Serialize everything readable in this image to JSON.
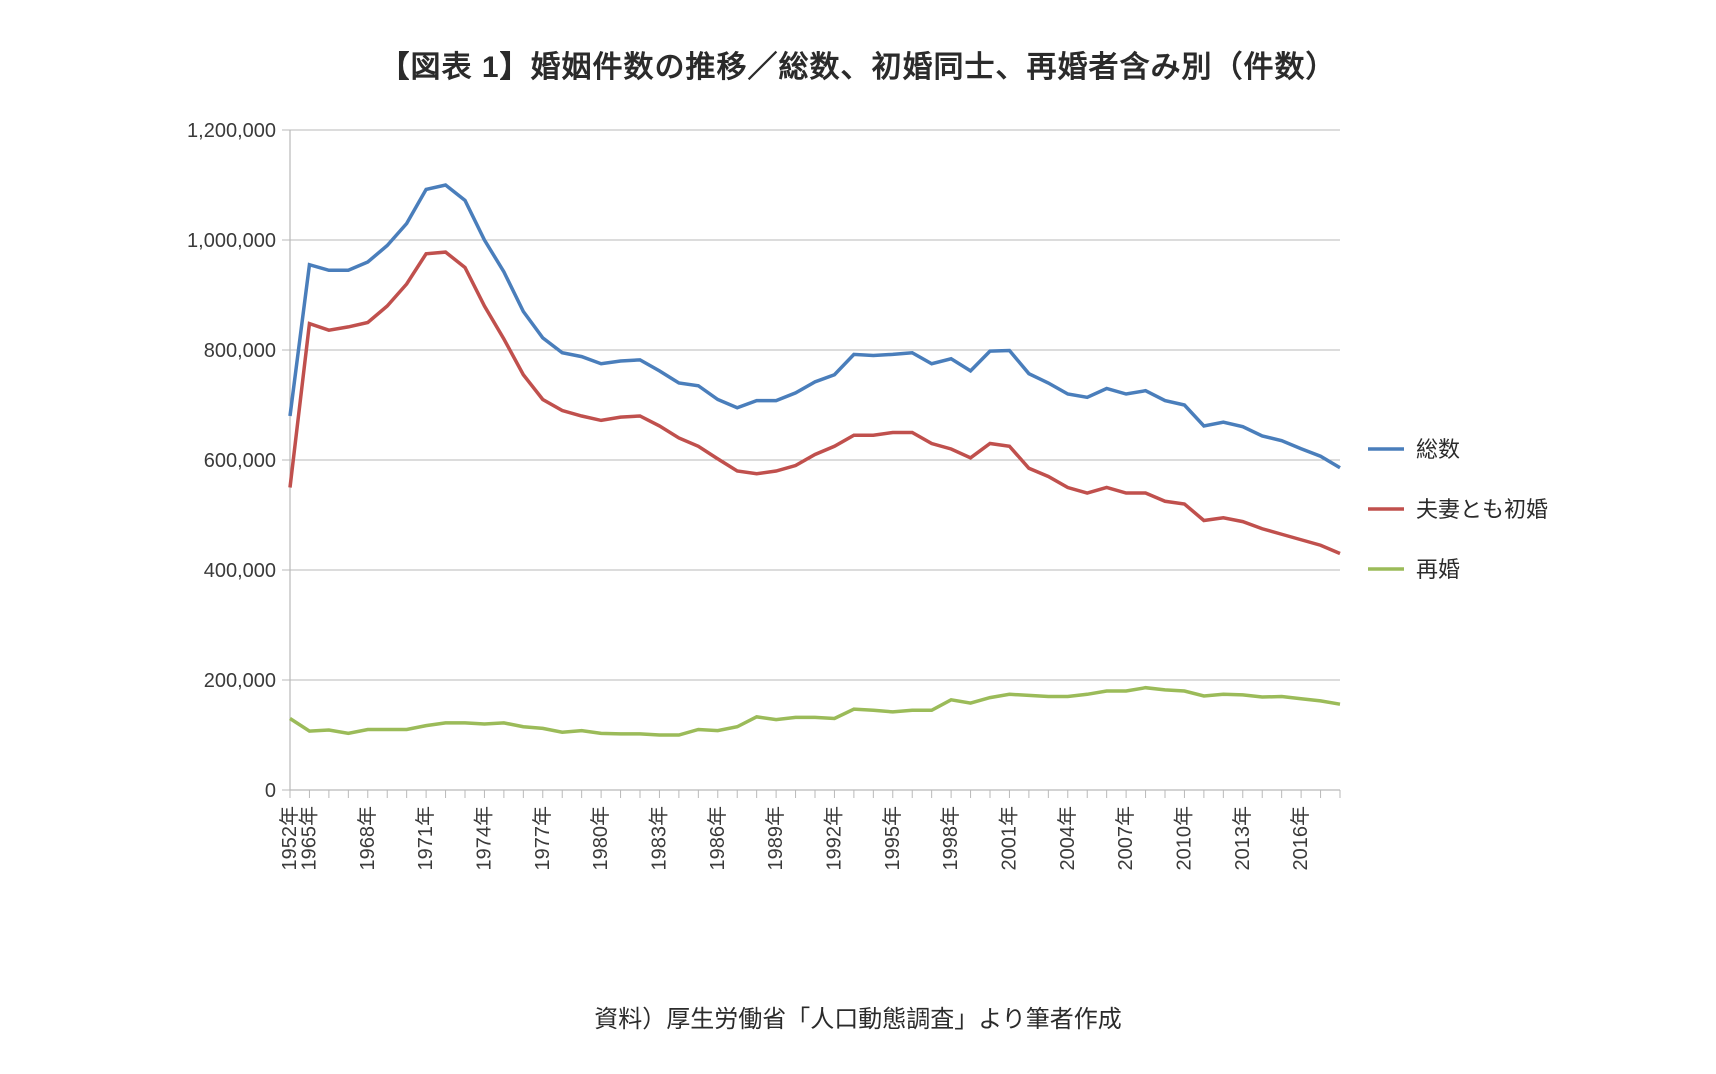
{
  "title": "【図表 1】婚姻件数の推移／総数、初婚同士、再婚者含み別（件数）",
  "source": "資料）厚生労働省「人口動態調査」より筆者作成",
  "chart": {
    "type": "line",
    "background_color": "#ffffff",
    "plot_border_color": "#b9b9b9",
    "grid_color": "#b9b9b9",
    "tick_font_color": "#3a3a3a",
    "title_fontsize": 30,
    "tick_fontsize": 20,
    "legend_fontsize": 22,
    "line_width": 3.5,
    "y": {
      "min": 0,
      "max": 1200000,
      "step": 200000,
      "tick_labels": [
        "0",
        "200,000",
        "400,000",
        "600,000",
        "800,000",
        "1,000,000",
        "1,200,000"
      ]
    },
    "x": {
      "years": [
        1952,
        1965,
        1966,
        1967,
        1968,
        1969,
        1970,
        1971,
        1972,
        1973,
        1974,
        1975,
        1976,
        1977,
        1978,
        1979,
        1980,
        1981,
        1982,
        1983,
        1984,
        1985,
        1986,
        1987,
        1988,
        1989,
        1990,
        1991,
        1992,
        1993,
        1994,
        1995,
        1996,
        1997,
        1998,
        1999,
        2000,
        2001,
        2002,
        2003,
        2004,
        2005,
        2006,
        2007,
        2008,
        2009,
        2010,
        2011,
        2012,
        2013,
        2014,
        2015,
        2016,
        2017,
        2018
      ],
      "tick_label_years": [
        1952,
        1965,
        1968,
        1971,
        1974,
        1977,
        1980,
        1983,
        1986,
        1989,
        1992,
        1995,
        1998,
        2001,
        2004,
        2007,
        2010,
        2013,
        2016
      ],
      "label_suffix": "年"
    },
    "series": [
      {
        "name": "総数",
        "color": "#4a7ebb",
        "values": [
          680000,
          955000,
          945000,
          945000,
          960000,
          990000,
          1030000,
          1092000,
          1100000,
          1072000,
          1000000,
          942000,
          870000,
          822000,
          795000,
          788000,
          775000,
          780000,
          782000,
          762000,
          740000,
          735000,
          710000,
          695000,
          708000,
          708000,
          722000,
          742000,
          755000,
          792000,
          790000,
          792000,
          795000,
          775000,
          784000,
          762000,
          798000,
          799000,
          757000,
          740000,
          720000,
          714000,
          730000,
          720000,
          726000,
          707984,
          700000,
          661895,
          668869,
          660613,
          643749,
          635156,
          620531,
          606866,
          586000
        ]
      },
      {
        "name": "夫妻とも初婚",
        "color": "#c0504d",
        "values": [
          550000,
          848000,
          836000,
          842000,
          850000,
          880000,
          920000,
          975000,
          978000,
          950000,
          880000,
          820000,
          755000,
          710000,
          690000,
          680000,
          672000,
          678000,
          680000,
          662000,
          640000,
          625000,
          602000,
          580000,
          575000,
          580000,
          590000,
          610000,
          625000,
          645000,
          645000,
          650000,
          650000,
          630000,
          620000,
          604000,
          630000,
          625000,
          585000,
          570000,
          550000,
          540000,
          550000,
          540000,
          540000,
          525000,
          520000,
          490000,
          495000,
          488000,
          475000,
          465000,
          455000,
          445000,
          430000
        ]
      },
      {
        "name": "再婚",
        "color": "#9bbb59",
        "values": [
          130000,
          107000,
          109000,
          103000,
          110000,
          110000,
          110000,
          117000,
          122000,
          122000,
          120000,
          122000,
          115000,
          112000,
          105000,
          108000,
          103000,
          102000,
          102000,
          100000,
          100000,
          110000,
          108000,
          115000,
          133000,
          128000,
          132000,
          132000,
          130000,
          147000,
          145000,
          142000,
          145000,
          145000,
          164000,
          158000,
          168000,
          174000,
          172000,
          170000,
          170000,
          174000,
          180000,
          180000,
          186000,
          182000,
          180000,
          171000,
          174000,
          173000,
          169000,
          170000,
          166000,
          162000,
          156000
        ]
      }
    ],
    "legend": {
      "position": "right",
      "line_length": 36,
      "gap": 60
    }
  }
}
